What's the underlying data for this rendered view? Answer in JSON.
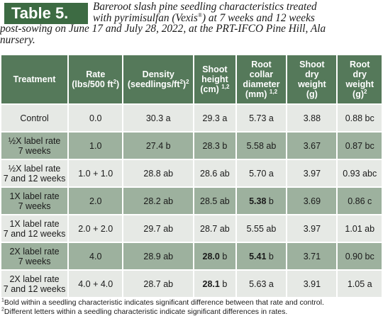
{
  "table_label": "Table 5.",
  "caption": {
    "line1": "Bareroot slash pine seedling characteristics treated",
    "line2_pre": "with pyrimisulfan (Vexis",
    "line2_sup": "®",
    "line2_post": ") at 7 weeks and 12 weeks",
    "line3": "post-sowing on June 17 and July 28, 2022, at the PRT-IFCO Pine Hill, Ala",
    "line4": "nursery."
  },
  "headers": {
    "treatment": "Treatment",
    "rate_l1": "Rate",
    "rate_l2": "(lbs/500 ft",
    "rate_sup": "2",
    "rate_close": ")",
    "density_l1": "Density",
    "density_l2": "(seedlings/ft",
    "density_sup": "2",
    "density_close": ")",
    "density_note": "2",
    "shoot_height_l1": "Shoot",
    "shoot_height_l2": "height",
    "shoot_height_l3": "(cm)",
    "shoot_height_note": "1,2",
    "root_collar_l1": "Root",
    "root_collar_l2": "collar",
    "root_collar_l3": "diameter",
    "root_collar_l4": "(mm)",
    "root_collar_note": "1,2",
    "shoot_dry_l1": "Shoot",
    "shoot_dry_l2": "dry",
    "shoot_dry_l3": "weight",
    "shoot_dry_l4": "(g)",
    "root_dry_l1": "Root",
    "root_dry_l2": "dry",
    "root_dry_l3": "weight",
    "root_dry_l4": "(g)",
    "root_dry_note": "2"
  },
  "rows": [
    {
      "treatment_l1": "Control",
      "treatment_l2": "",
      "rate": "0.0",
      "density": "30.3 a",
      "shoot_height": "29.3 a",
      "root_collar": "5.73 a",
      "shoot_dry": "3.88",
      "root_dry": "0.88 bc",
      "shade": "light"
    },
    {
      "treatment_l1": "½X label rate",
      "treatment_l2": "7 weeks",
      "rate": "1.0",
      "density": "27.4 b",
      "shoot_height": "28.3 b",
      "root_collar": "5.58 ab",
      "shoot_dry": "3.67",
      "root_dry": "0.87 bc",
      "shade": "dark"
    },
    {
      "treatment_l1": "½X label rate",
      "treatment_l2": "7 and 12 weeks",
      "rate": "1.0 + 1.0",
      "density": "28.8 ab",
      "shoot_height": "28.6 ab",
      "root_collar": "5.70 a",
      "shoot_dry": "3.97",
      "root_dry": "0.93 abc",
      "shade": "light"
    },
    {
      "treatment_l1": "1X label rate",
      "treatment_l2": "7 weeks",
      "rate": "2.0",
      "density": "28.2 ab",
      "shoot_height": "28.5 ab",
      "root_collar_bold": "5.38",
      "root_collar": " b",
      "shoot_dry": "3.69",
      "root_dry": "0.86 c",
      "shade": "dark"
    },
    {
      "treatment_l1": "1X label rate",
      "treatment_l2": "7 and 12 weeks",
      "rate": "2.0 + 2.0",
      "density": "29.7 ab",
      "shoot_height": "28.7 ab",
      "root_collar": "5.55 ab",
      "shoot_dry": "3.97",
      "root_dry": "1.01 ab",
      "shade": "light"
    },
    {
      "treatment_l1": "2X label rate",
      "treatment_l2": "7 weeks",
      "rate": "4.0",
      "density": "28.9 ab",
      "shoot_height_bold": "28.0",
      "shoot_height": " b",
      "root_collar_bold": "5.41",
      "root_collar": " b",
      "shoot_dry": "3.71",
      "root_dry": "0.90 bc",
      "shade": "dark"
    },
    {
      "treatment_l1": "2X label rate",
      "treatment_l2": "7 and 12 weeks",
      "rate": "4.0 + 4.0",
      "density": "28.7 ab",
      "shoot_height_bold": "28.1",
      "shoot_height": " b",
      "root_collar": "5.63 a",
      "shoot_dry": "3.91",
      "root_dry": "1.05 a",
      "shade": "light"
    }
  ],
  "footnotes": {
    "n1_mark": "1",
    "n1": "Bold within a seedling characteristic indicates significant difference between that rate and control.",
    "n2_mark": "2",
    "n2": "Different letters within a seedling characteristic indicate significant differences in rates."
  },
  "colors": {
    "badge": "#3d6b43",
    "header": "#55795a",
    "row_light": "#e6e9e5",
    "row_dark": "#9db19e"
  }
}
